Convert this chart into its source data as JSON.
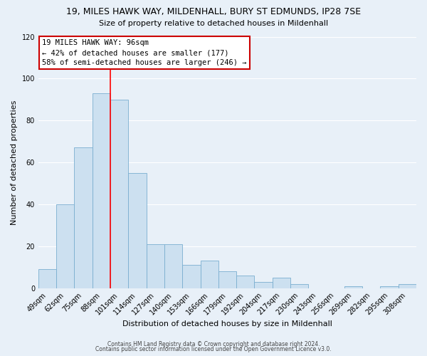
{
  "title_line1": "19, MILES HAWK WAY, MILDENHALL, BURY ST EDMUNDS, IP28 7SE",
  "title_line2": "Size of property relative to detached houses in Mildenhall",
  "xlabel": "Distribution of detached houses by size in Mildenhall",
  "ylabel": "Number of detached properties",
  "categories": [
    "49sqm",
    "62sqm",
    "75sqm",
    "88sqm",
    "101sqm",
    "114sqm",
    "127sqm",
    "140sqm",
    "153sqm",
    "166sqm",
    "179sqm",
    "192sqm",
    "204sqm",
    "217sqm",
    "230sqm",
    "243sqm",
    "256sqm",
    "269sqm",
    "282sqm",
    "295sqm",
    "308sqm"
  ],
  "values": [
    9,
    40,
    67,
    93,
    90,
    55,
    21,
    21,
    11,
    13,
    8,
    6,
    3,
    5,
    2,
    0,
    0,
    1,
    0,
    1,
    2
  ],
  "bar_facecolor": "#cce0f0",
  "bar_edgecolor": "#7aaed0",
  "redline_index": 4,
  "ylim": [
    0,
    120
  ],
  "yticks": [
    0,
    20,
    40,
    60,
    80,
    100,
    120
  ],
  "annotation_title": "19 MILES HAWK WAY: 96sqm",
  "annotation_line1": "← 42% of detached houses are smaller (177)",
  "annotation_line2": "58% of semi-detached houses are larger (246) →",
  "annotation_box_facecolor": "#ffffff",
  "annotation_box_edgecolor": "#cc0000",
  "footer_line1": "Contains HM Land Registry data © Crown copyright and database right 2024.",
  "footer_line2": "Contains public sector information licensed under the Open Government Licence v3.0.",
  "background_color": "#e8f0f8",
  "grid_color": "#ffffff",
  "title1_fontsize": 9,
  "title2_fontsize": 8,
  "axis_label_fontsize": 8,
  "tick_fontsize": 7,
  "annotation_fontsize": 7.5,
  "footer_fontsize": 5.5
}
